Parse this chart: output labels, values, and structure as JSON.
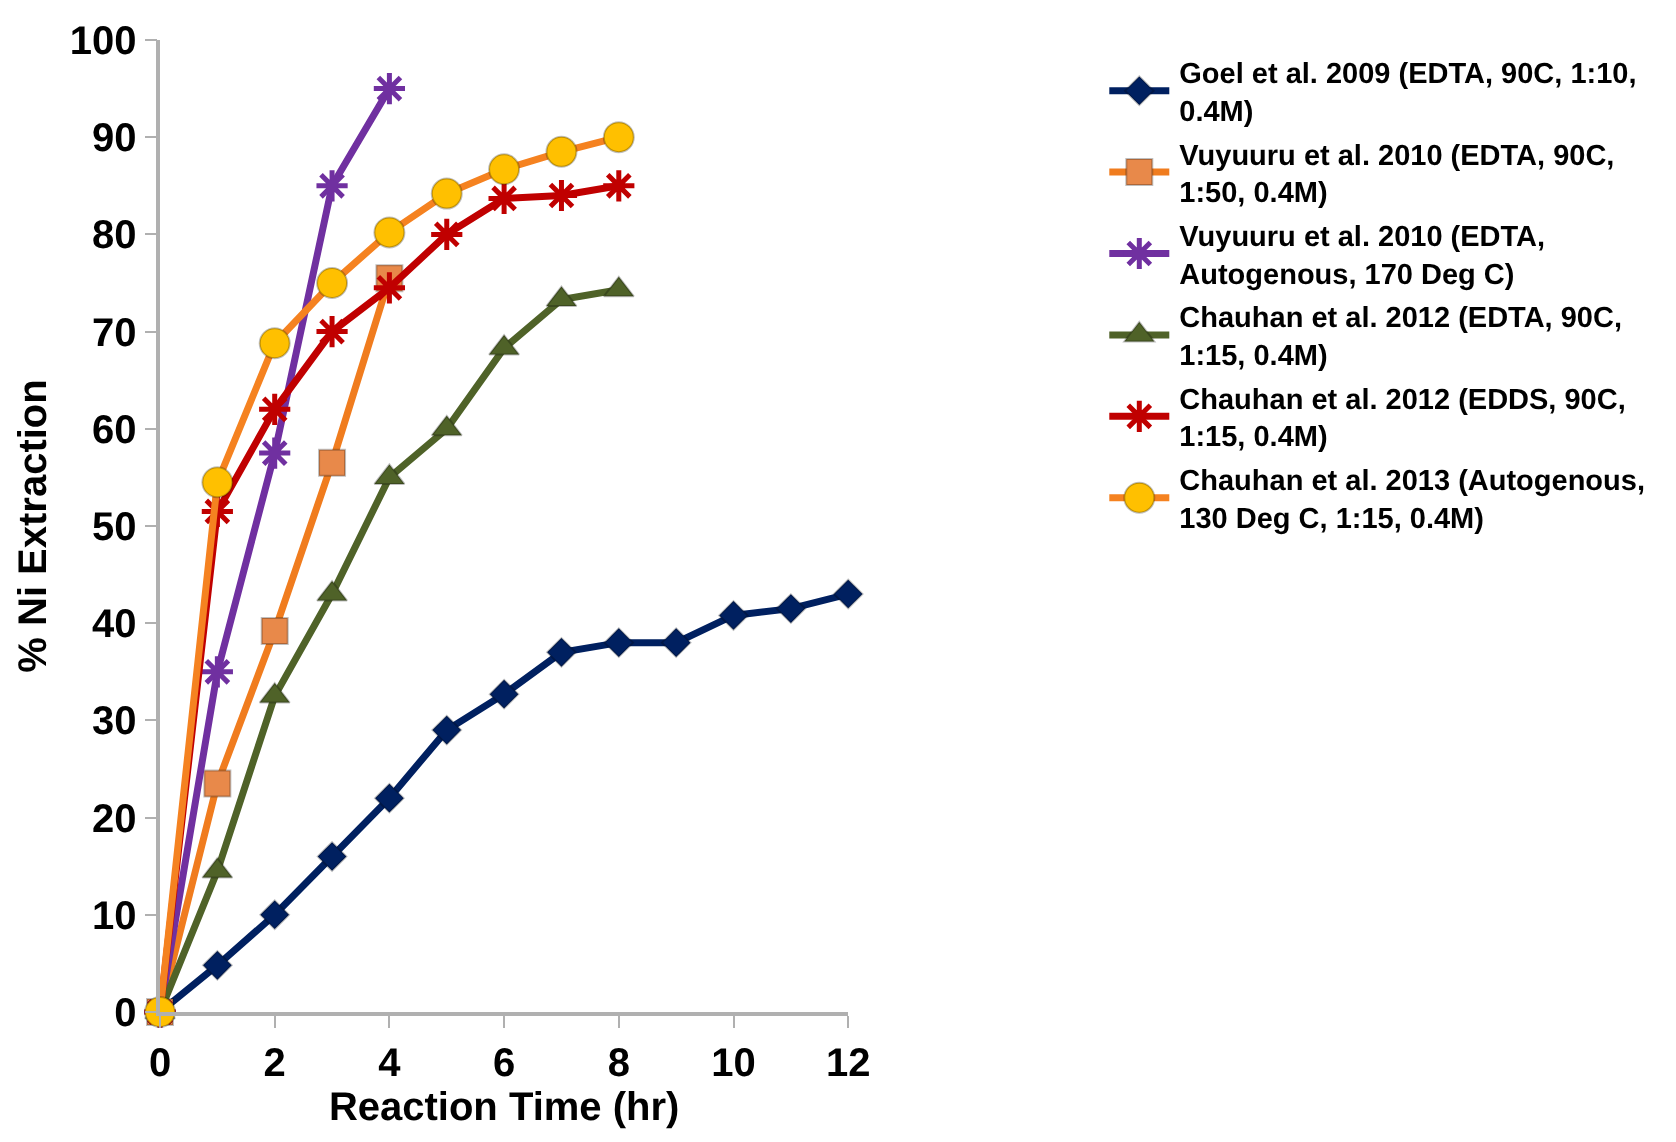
{
  "chart_data": {
    "type": "line",
    "xlabel": "Reaction Time (hr)",
    "ylabel": "% Ni Extraction",
    "xlim": [
      0,
      12
    ],
    "xticks": [
      0,
      2,
      4,
      6,
      8,
      10,
      12
    ],
    "ylim": [
      0,
      100
    ],
    "yticks": [
      0,
      10,
      20,
      30,
      40,
      50,
      60,
      70,
      80,
      90,
      100
    ],
    "legend": "right",
    "series": [
      {
        "name": "Goel et al. 2009 (EDTA, 90C, 1:10, 0.4M)",
        "color": "#002060",
        "marker": "diamond",
        "x": [
          0,
          1,
          2,
          3,
          4,
          5,
          6,
          7,
          8,
          9,
          10,
          11,
          12
        ],
        "values": [
          0,
          4.8,
          10,
          16,
          22,
          29,
          32.7,
          37,
          38,
          38,
          40.8,
          41.5,
          43
        ]
      },
      {
        "name": "Vuyuuru et al. 2010 (EDTA, 90C, 1:50, 0.4M)",
        "color": "#f07c1e",
        "colors": [
          "#e8894a",
          "#e8894a",
          "#e8894a",
          "#e8894a",
          "#e8894a"
        ],
        "marker": "square",
        "x": [
          0,
          1,
          2,
          3,
          4
        ],
        "values": [
          0,
          23.5,
          39.2,
          56.5,
          75.5
        ]
      },
      {
        "name": "Vuyuuru et al. 2010 (EDTA, Autogenous, 170 Deg C)",
        "color": "#7030a0",
        "marker": "cross",
        "x": [
          0,
          1,
          2,
          3,
          4
        ],
        "values": [
          0,
          35,
          57.5,
          85,
          95
        ]
      },
      {
        "name": "Chauhan et al. 2012 (EDTA, 90C, 1:15, 0.4M)",
        "color": "#4f6228",
        "marker": "triangle",
        "x": [
          0,
          1,
          2,
          3,
          4,
          5,
          6,
          7,
          8
        ],
        "values": [
          0,
          14.5,
          32.5,
          43,
          55,
          60,
          68.3,
          73.3,
          74.3
        ]
      },
      {
        "name": "Chauhan et al. 2012 (EDDS, 90C, 1:15, 0.4M)",
        "color": "#c00000",
        "marker": "cross",
        "x": [
          0,
          1,
          2,
          3,
          4,
          5,
          6,
          7,
          8
        ],
        "values": [
          0,
          51.5,
          62,
          70,
          74.5,
          80,
          83.7,
          84,
          85
        ]
      },
      {
        "name": "Chauhan et al. 2013 (Autogenous, 130 Deg C, 1:15, 0.4M)",
        "color": "#f58220",
        "colors": [
          "#ffc000",
          "#ffc000",
          "#ffc000",
          "#ffc000",
          "#ffc000",
          "#ffc000",
          "#ffc000",
          "#ffc000",
          "#ffc000"
        ],
        "marker": "circle",
        "x": [
          0,
          1,
          2,
          3,
          4,
          5,
          6,
          7,
          8
        ],
        "values": [
          0,
          54.5,
          68.8,
          75,
          80.2,
          84.2,
          86.7,
          88.5,
          90
        ]
      }
    ]
  }
}
